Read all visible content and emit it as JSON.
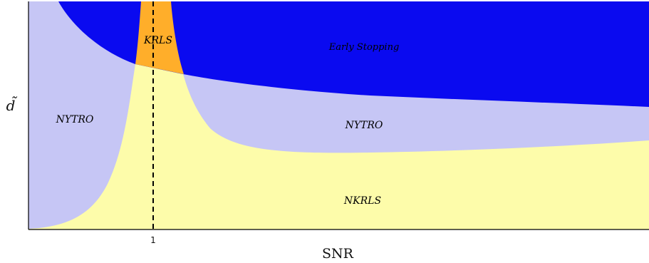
{
  "diagram": {
    "x_axis_label": "SNR",
    "y_axis_label": "d̃",
    "x_tick_label": "1",
    "regions": {
      "early_stopping": "Early Stopping",
      "krls": "KRLS",
      "nytro_left": "NYTRO",
      "nytro_right": "NYTRO",
      "nkrls": "NKRLS"
    },
    "colors": {
      "early_stopping": "#0a0af0",
      "krls": "#ffae2a",
      "nytro": "#c6c6f5",
      "nkrls": "#fdfcaa",
      "axis": "#000000"
    }
  }
}
